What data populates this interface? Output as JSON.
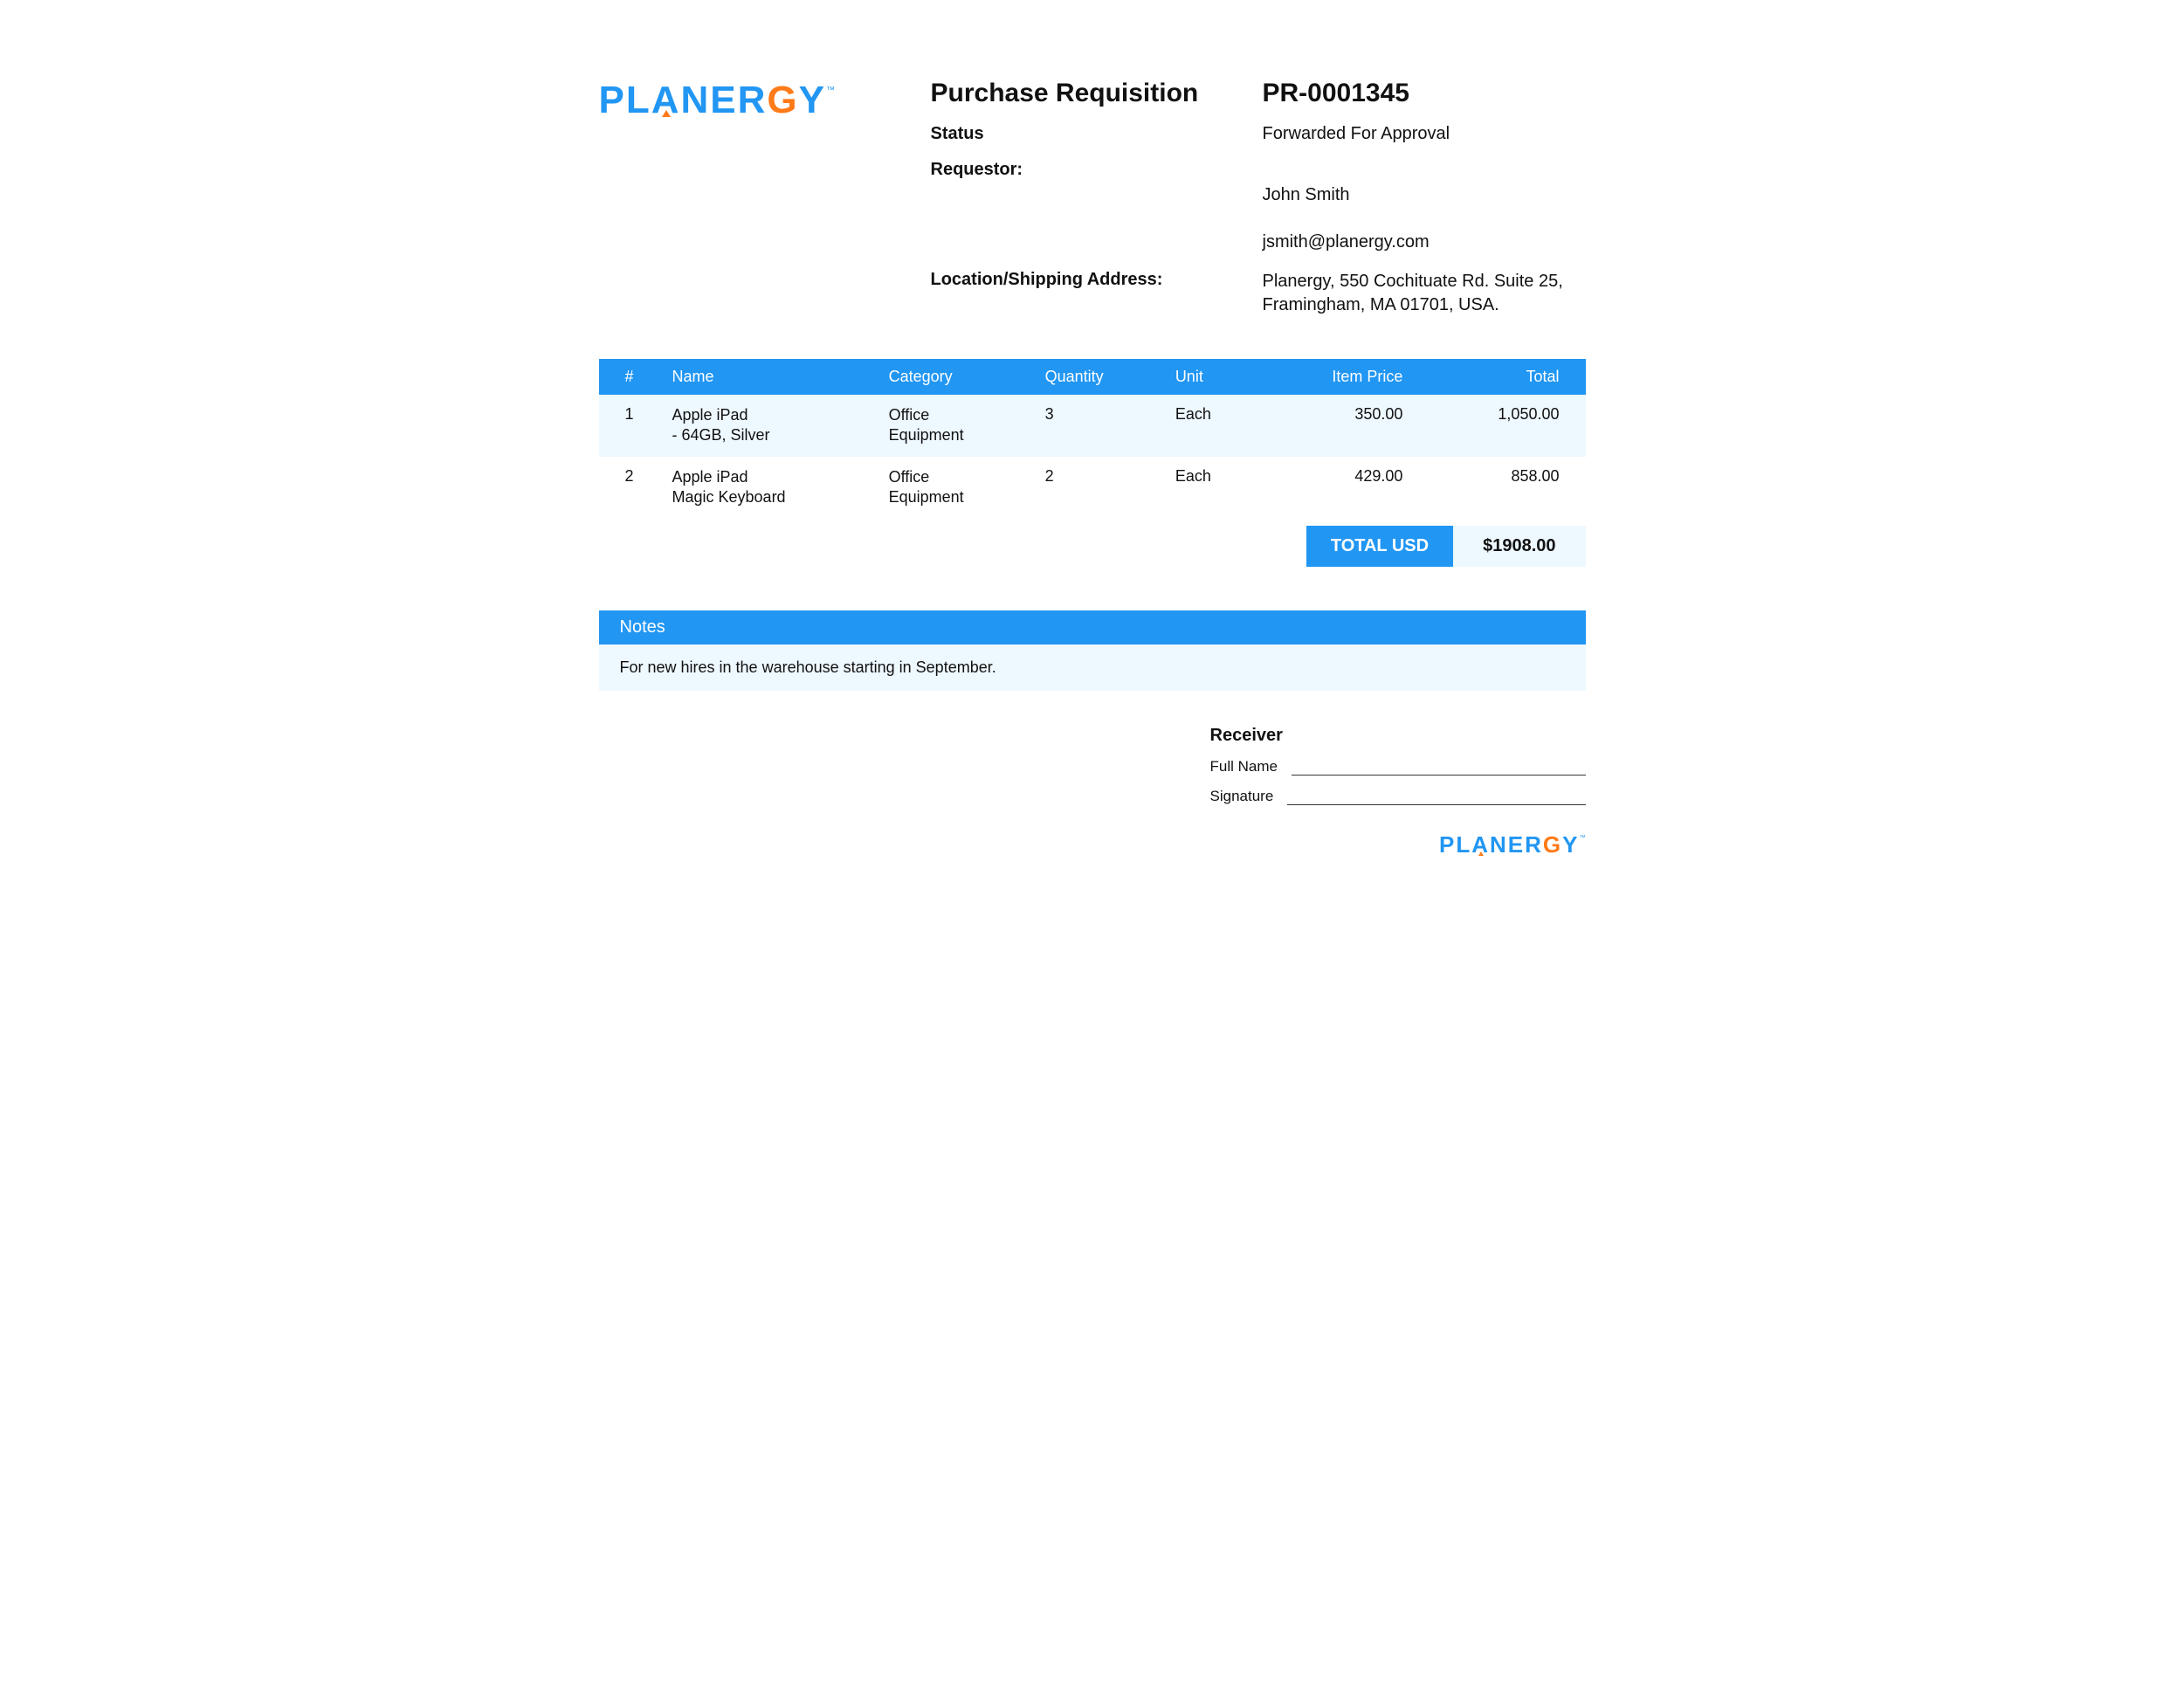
{
  "brand": {
    "name": "PLANERGY",
    "tm": "™",
    "logo_color": "#2196f3",
    "accent_color": "#ff7a18"
  },
  "header": {
    "title": "Purchase Requisition",
    "pr_number": "PR-0001345",
    "status_label": "Status",
    "status_value": "Forwarded For Approval",
    "requestor_label": "Requestor:",
    "requestor_name": "John Smith",
    "requestor_email": "jsmith@planergy.com",
    "location_label": "Location/Shipping Address:",
    "location_value": "Planergy, 550 Cochituate Rd. Suite 25, Framingham, MA 01701, USA."
  },
  "table": {
    "columns": [
      "#",
      "Name",
      "Category",
      "Quantity",
      "Unit",
      "Item Price",
      "Total"
    ],
    "rows": [
      {
        "num": "1",
        "name": "Apple iPad\n- 64GB, Silver",
        "category": "Office\nEquipment",
        "qty": "3",
        "unit": "Each",
        "price": "350.00",
        "total": "1,050.00"
      },
      {
        "num": "2",
        "name": "Apple iPad\nMagic Keyboard",
        "category": "Office\nEquipment",
        "qty": "2",
        "unit": "Each",
        "price": "429.00",
        "total": "858.00"
      }
    ],
    "header_bg": "#2196f3",
    "header_fg": "#ffffff",
    "row_alt_bg": "#eef8ff"
  },
  "totals": {
    "label": "TOTAL USD",
    "value": "$1908.00"
  },
  "notes": {
    "heading": "Notes",
    "body": "For new hires in the warehouse starting in September."
  },
  "receiver": {
    "heading": "Receiver",
    "full_name_label": "Full Name",
    "signature_label": "Signature"
  }
}
